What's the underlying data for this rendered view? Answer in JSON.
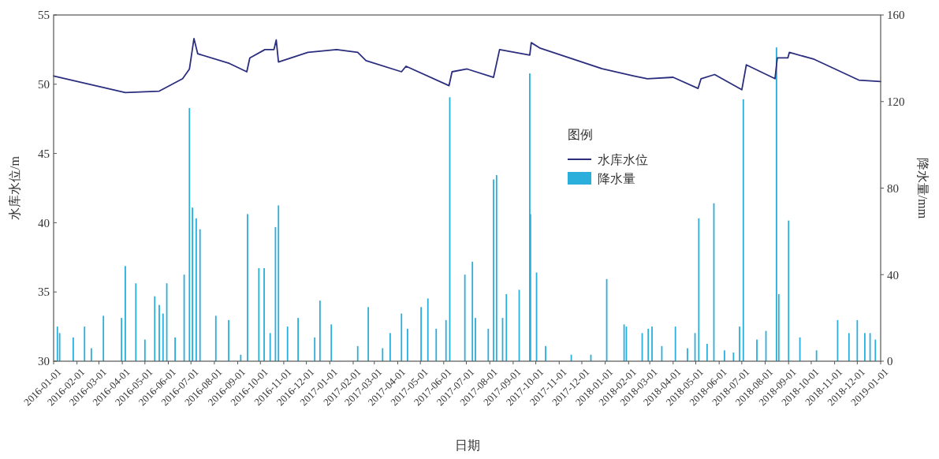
{
  "chart_data": {
    "type": "line",
    "xlabel": "日期",
    "ylabel": "水库水位/m",
    "y2label": "降水量/mm",
    "legend_title": "图例",
    "legend": "right",
    "xlim": [
      "2016-01-01",
      "2019-01-01"
    ],
    "xticks": [
      "2016-01-01",
      "2016-02-01",
      "2016-03-01",
      "2016-04-01",
      "2016-05-01",
      "2016-06-01",
      "2016-07-01",
      "2016-08-01",
      "2016-09-01",
      "2016-10-01",
      "2016-11-01",
      "2016-12-01",
      "2017-01-01",
      "2017-02-01",
      "2017-03-01",
      "2017-04-01",
      "2017-05-01",
      "2017-06-01",
      "2017-07-01",
      "2017-08-01",
      "2017-09-01",
      "2017-10-01",
      "2017-11-01",
      "2017-12-01",
      "2018-01-01",
      "2018-02-01",
      "2018-03-01",
      "2018-04-01",
      "2018-05-01",
      "2018-06-01",
      "2018-07-01",
      "2018-08-01",
      "2018-09-01",
      "2018-10-01",
      "2018-11-01",
      "2018-12-01",
      "2019-01-01"
    ],
    "ylim": [
      30,
      55
    ],
    "yticks": [
      30,
      35,
      40,
      45,
      50,
      55
    ],
    "y2lim": [
      0,
      160
    ],
    "y2ticks": [
      0,
      40,
      80,
      120,
      160
    ],
    "series": [
      {
        "name": "降水量",
        "type": "bar",
        "axis": "y2",
        "color": "#2aaedc",
        "x": [
          "2016-01-06",
          "2016-01-09",
          "2016-01-27",
          "2016-02-11",
          "2016-02-20",
          "2016-03-07",
          "2016-03-31",
          "2016-04-05",
          "2016-04-19",
          "2016-05-01",
          "2016-05-14",
          "2016-05-20",
          "2016-05-25",
          "2016-05-30",
          "2016-06-10",
          "2016-06-22",
          "2016-06-29",
          "2016-07-03",
          "2016-07-08",
          "2016-07-13",
          "2016-08-03",
          "2016-08-20",
          "2016-09-05",
          "2016-09-14",
          "2016-09-29",
          "2016-10-06",
          "2016-10-14",
          "2016-10-21",
          "2016-10-25",
          "2016-11-06",
          "2016-11-20",
          "2016-12-12",
          "2016-12-19",
          "2017-01-03",
          "2017-02-07",
          "2017-02-21",
          "2017-03-12",
          "2017-03-22",
          "2017-04-06",
          "2017-04-14",
          "2017-05-02",
          "2017-05-11",
          "2017-05-22",
          "2017-06-04",
          "2017-06-09",
          "2017-06-29",
          "2017-07-09",
          "2017-07-13",
          "2017-07-30",
          "2017-08-06",
          "2017-08-10",
          "2017-08-18",
          "2017-08-23",
          "2017-09-09",
          "2017-09-23",
          "2017-09-24",
          "2017-10-02",
          "2017-10-14",
          "2017-11-17",
          "2017-12-13",
          "2018-01-03",
          "2018-01-26",
          "2018-01-29",
          "2018-02-19",
          "2018-02-27",
          "2018-03-04",
          "2018-03-17",
          "2018-04-04",
          "2018-04-20",
          "2018-04-30",
          "2018-05-05",
          "2018-05-16",
          "2018-05-25",
          "2018-06-08",
          "2018-06-20",
          "2018-06-28",
          "2018-07-03",
          "2018-07-21",
          "2018-08-02",
          "2018-08-16",
          "2018-08-19",
          "2018-09-01",
          "2018-09-16",
          "2018-10-08",
          "2018-11-05",
          "2018-11-20",
          "2018-12-01",
          "2018-12-11",
          "2018-12-18",
          "2018-12-25"
        ],
        "values": [
          16,
          13,
          11,
          16,
          6,
          21,
          20,
          44,
          36,
          10,
          30,
          26,
          22,
          36,
          11,
          40,
          117,
          71,
          66,
          61,
          21,
          19,
          3,
          68,
          43,
          43,
          13,
          62,
          72,
          16,
          20,
          11,
          28,
          17,
          7,
          25,
          6,
          13,
          22,
          15,
          25,
          29,
          15,
          19,
          122,
          40,
          46,
          20,
          15,
          84,
          86,
          20,
          31,
          33,
          133,
          68,
          41,
          7,
          3,
          3,
          38,
          17,
          16,
          13,
          15,
          16,
          7,
          16,
          6,
          13,
          66,
          8,
          73,
          5,
          4,
          16,
          121,
          10,
          14,
          145,
          31,
          65,
          11,
          5,
          19,
          13,
          19,
          13,
          13,
          10
        ]
      },
      {
        "name": "水库水位",
        "axis": "y",
        "color": "#2b2e7e",
        "x": [
          "2016-01-01",
          "2016-04-05",
          "2016-05-20",
          "2016-06-20",
          "2016-06-29",
          "2016-07-05",
          "2016-07-10",
          "2016-08-21",
          "2016-09-13",
          "2016-09-17",
          "2016-10-07",
          "2016-10-19",
          "2016-10-22",
          "2016-10-25",
          "2016-12-03",
          "2017-01-10",
          "2017-02-07",
          "2017-02-18",
          "2017-04-06",
          "2017-04-12",
          "2017-06-08",
          "2017-06-12",
          "2017-07-02",
          "2017-08-06",
          "2017-08-14",
          "2017-09-23",
          "2017-09-25",
          "2017-10-07",
          "2017-12-29",
          "2018-02-08",
          "2018-02-26",
          "2018-04-01",
          "2018-05-04",
          "2018-05-08",
          "2018-05-26",
          "2018-07-01",
          "2018-07-07",
          "2018-08-14",
          "2018-08-17",
          "2018-08-31",
          "2018-09-02",
          "2018-10-05",
          "2018-12-03",
          "2019-01-01"
        ],
        "values": [
          50.6,
          49.4,
          49.5,
          50.4,
          51.1,
          53.3,
          52.2,
          51.5,
          50.9,
          51.9,
          52.5,
          52.5,
          53.2,
          51.6,
          52.3,
          52.5,
          52.3,
          51.7,
          50.9,
          51.3,
          49.9,
          50.9,
          51.1,
          50.5,
          52.5,
          52.1,
          53.0,
          52.6,
          51.1,
          50.6,
          50.4,
          50.5,
          49.7,
          50.4,
          50.7,
          49.6,
          51.4,
          50.4,
          51.9,
          51.9,
          52.3,
          51.8,
          50.3,
          50.2
        ]
      }
    ]
  }
}
